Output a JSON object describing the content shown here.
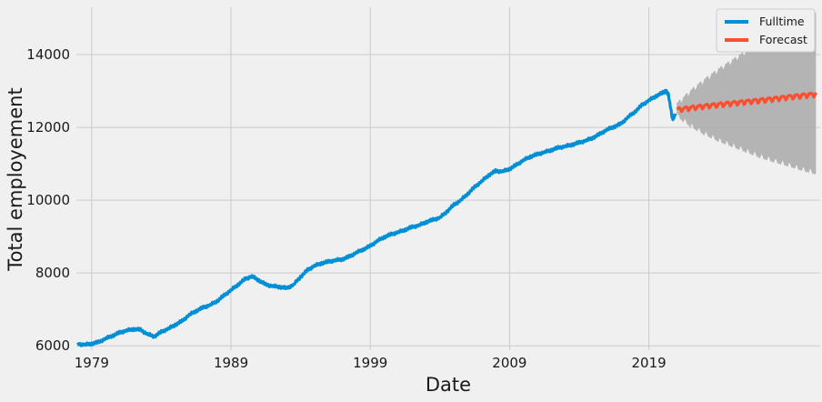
{
  "chart_data": {
    "type": "line",
    "xlabel": "Date",
    "ylabel": "Total employement",
    "xlim": [
      1977.9,
      2031.3
    ],
    "ylim": [
      5880,
      15300
    ],
    "x_ticks": [
      1979,
      1989,
      1999,
      2009,
      2019
    ],
    "x_tick_labels": [
      "1979",
      "1989",
      "1999",
      "2009",
      "2019"
    ],
    "y_ticks": [
      6000,
      8000,
      10000,
      12000,
      14000
    ],
    "y_tick_labels": [
      "6000",
      "8000",
      "10000",
      "12000",
      "14000"
    ],
    "grid": true,
    "legend": {
      "position": "top-right",
      "entries": [
        "Fulltime",
        "Forecast"
      ]
    },
    "colors": {
      "fulltime": "#008fd5",
      "forecast": "#fc4f30",
      "band": "#a9a9a9",
      "background": "#f0f0f0",
      "grid": "#cbcbcb"
    },
    "series": [
      {
        "name": "Fulltime",
        "x": [
          1978.0,
          1978.5,
          1979.0,
          1979.5,
          1980.0,
          1980.5,
          1981.0,
          1981.5,
          1982.0,
          1982.5,
          1983.0,
          1983.5,
          1984.0,
          1984.5,
          1985.0,
          1985.5,
          1986.0,
          1986.5,
          1987.0,
          1987.5,
          1988.0,
          1988.5,
          1989.0,
          1989.5,
          1990.0,
          1990.5,
          1991.0,
          1991.5,
          1992.0,
          1992.5,
          1993.0,
          1993.5,
          1994.0,
          1994.5,
          1995.0,
          1995.5,
          1996.0,
          1996.5,
          1997.0,
          1997.5,
          1998.0,
          1998.5,
          1999.0,
          1999.5,
          2000.0,
          2000.5,
          2001.0,
          2001.5,
          2002.0,
          2002.5,
          2003.0,
          2003.5,
          2004.0,
          2004.5,
          2005.0,
          2005.5,
          2006.0,
          2006.5,
          2007.0,
          2007.5,
          2008.0,
          2008.5,
          2009.0,
          2009.5,
          2010.0,
          2010.5,
          2011.0,
          2011.5,
          2012.0,
          2012.5,
          2013.0,
          2013.5,
          2014.0,
          2014.5,
          2015.0,
          2015.5,
          2016.0,
          2016.5,
          2017.0,
          2017.5,
          2018.0,
          2018.5,
          2019.0,
          2019.5,
          2020.0,
          2020.2,
          2020.4,
          2020.7,
          2020.9
        ],
        "values": [
          6050,
          6030,
          6060,
          6100,
          6200,
          6280,
          6360,
          6420,
          6460,
          6440,
          6320,
          6260,
          6380,
          6470,
          6580,
          6680,
          6850,
          6960,
          7050,
          7120,
          7230,
          7380,
          7530,
          7680,
          7830,
          7910,
          7800,
          7680,
          7640,
          7620,
          7580,
          7680,
          7900,
          8080,
          8200,
          8270,
          8310,
          8350,
          8380,
          8450,
          8560,
          8650,
          8740,
          8880,
          8990,
          9060,
          9120,
          9190,
          9260,
          9310,
          9400,
          9460,
          9520,
          9690,
          9870,
          10000,
          10180,
          10360,
          10520,
          10690,
          10800,
          10790,
          10860,
          10970,
          11100,
          11200,
          11260,
          11320,
          11380,
          11440,
          11480,
          11530,
          11580,
          11640,
          11720,
          11820,
          11940,
          12020,
          12100,
          12280,
          12430,
          12610,
          12740,
          12860,
          12950,
          13000,
          12920,
          12200,
          12380
        ]
      },
      {
        "name": "Forecast",
        "x": [
          2021.0,
          2022.0,
          2023.0,
          2024.0,
          2025.0,
          2026.0,
          2027.0,
          2028.0,
          2029.0,
          2030.0,
          2031.0
        ],
        "values": [
          12480,
          12530,
          12580,
          12620,
          12660,
          12700,
          12740,
          12780,
          12830,
          12870,
          12910
        ],
        "lower": [
          12330,
          12050,
          11830,
          11650,
          11500,
          11350,
          11200,
          11080,
          10970,
          10850,
          10750
        ],
        "upper": [
          12630,
          12990,
          13300,
          13580,
          13830,
          14080,
          14310,
          14530,
          14760,
          14960,
          15130
        ]
      }
    ]
  }
}
